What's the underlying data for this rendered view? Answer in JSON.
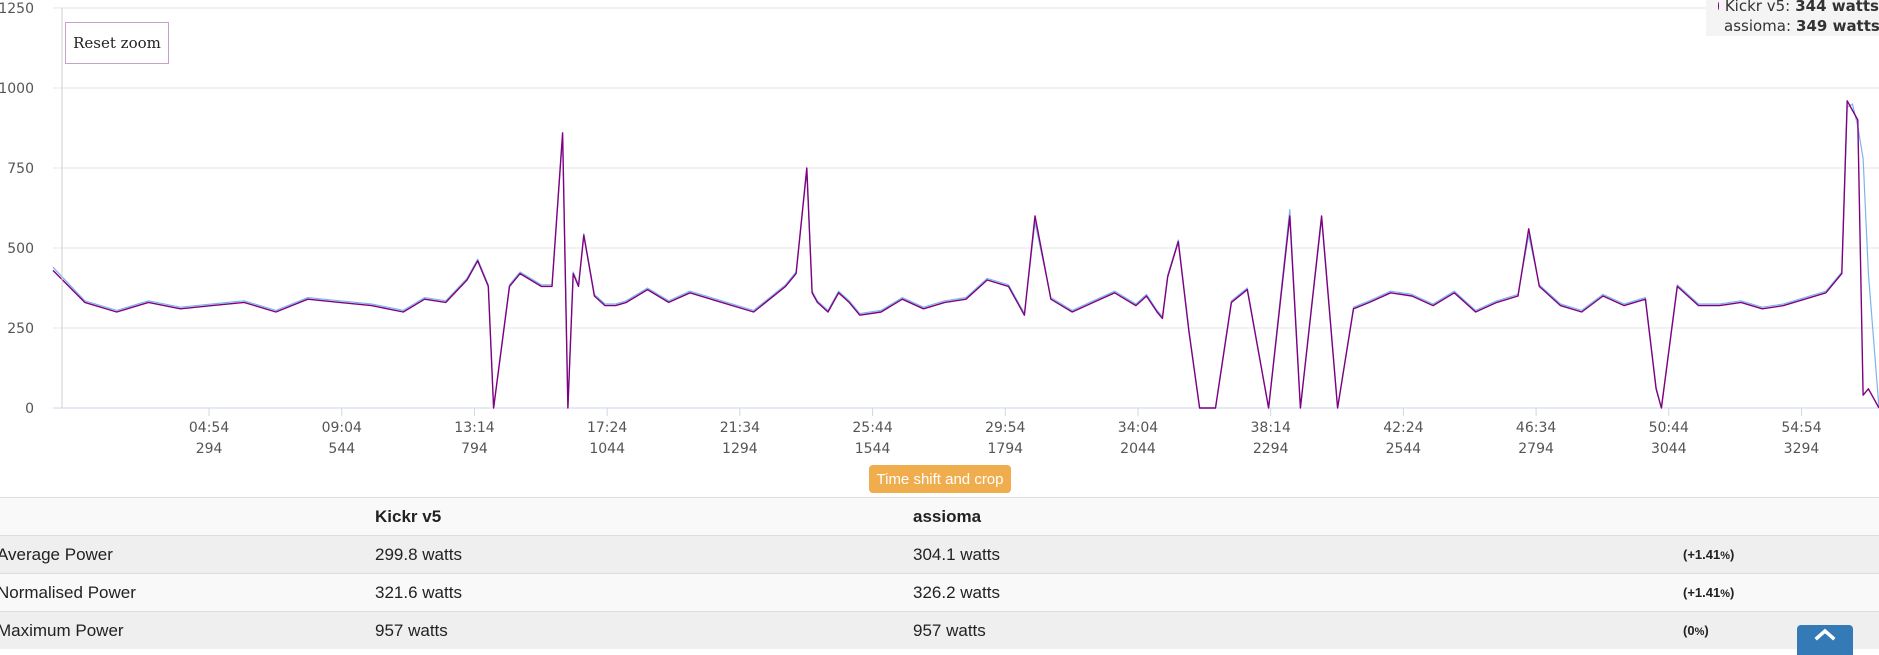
{
  "chart_data": {
    "type": "line",
    "title": "",
    "xlabel": "",
    "ylabel": "",
    "ylim": [
      0,
      1250
    ],
    "yticks": [
      0,
      250,
      500,
      750,
      1000,
      1250
    ],
    "grid": true,
    "x_tick_times": [
      "04:54",
      "09:04",
      "13:14",
      "17:24",
      "21:34",
      "25:44",
      "29:54",
      "34:04",
      "38:14",
      "42:24",
      "46:34",
      "50:44",
      "54:54"
    ],
    "x_tick_samples": [
      "294",
      "544",
      "794",
      "1044",
      "1294",
      "1544",
      "1794",
      "2044",
      "2294",
      "2544",
      "2794",
      "3044",
      "3294"
    ],
    "x_range_samples": [
      0,
      3440
    ],
    "series": [
      {
        "name": "Kickr v5",
        "color": "#800080",
        "x": [
          0,
          60,
          120,
          180,
          240,
          300,
          360,
          420,
          480,
          540,
          600,
          660,
          700,
          740,
          780,
          800,
          820,
          830,
          860,
          880,
          920,
          940,
          960,
          970,
          980,
          990,
          1000,
          1020,
          1040,
          1060,
          1080,
          1120,
          1160,
          1200,
          1260,
          1320,
          1380,
          1400,
          1420,
          1430,
          1440,
          1460,
          1480,
          1500,
          1520,
          1560,
          1600,
          1640,
          1680,
          1720,
          1760,
          1800,
          1830,
          1850,
          1880,
          1920,
          1960,
          2000,
          2040,
          2060,
          2080,
          2090,
          2100,
          2120,
          2140,
          2160,
          2190,
          2220,
          2250,
          2290,
          2330,
          2350,
          2390,
          2420,
          2450,
          2480,
          2520,
          2560,
          2600,
          2640,
          2680,
          2720,
          2760,
          2780,
          2800,
          2840,
          2880,
          2920,
          2960,
          3000,
          3020,
          3030,
          3060,
          3100,
          3140,
          3180,
          3220,
          3260,
          3300,
          3340,
          3370,
          3380,
          3390,
          3400,
          3410,
          3420,
          3440
        ],
        "values": [
          430,
          330,
          300,
          330,
          310,
          320,
          330,
          300,
          340,
          330,
          320,
          300,
          340,
          330,
          400,
          460,
          380,
          0,
          380,
          420,
          380,
          380,
          860,
          0,
          420,
          380,
          540,
          350,
          320,
          320,
          330,
          370,
          330,
          360,
          330,
          300,
          380,
          420,
          750,
          360,
          330,
          300,
          360,
          330,
          290,
          300,
          340,
          310,
          330,
          340,
          400,
          380,
          290,
          600,
          340,
          300,
          330,
          360,
          320,
          350,
          300,
          280,
          410,
          520,
          240,
          0,
          0,
          330,
          370,
          0,
          600,
          0,
          600,
          0,
          310,
          330,
          360,
          350,
          320,
          360,
          300,
          330,
          350,
          560,
          380,
          320,
          300,
          350,
          320,
          340,
          60,
          0,
          380,
          320,
          320,
          330,
          310,
          320,
          340,
          360,
          420,
          960,
          930,
          900,
          40,
          60,
          0
        ]
      },
      {
        "name": "assioma",
        "color": "#7cb5ec",
        "x": [
          0,
          60,
          120,
          180,
          240,
          300,
          360,
          420,
          480,
          540,
          600,
          660,
          700,
          740,
          780,
          800,
          820,
          830,
          860,
          880,
          920,
          940,
          960,
          970,
          980,
          990,
          1000,
          1020,
          1040,
          1060,
          1080,
          1120,
          1160,
          1200,
          1260,
          1320,
          1380,
          1400,
          1420,
          1430,
          1440,
          1460,
          1480,
          1500,
          1520,
          1560,
          1600,
          1640,
          1680,
          1720,
          1760,
          1800,
          1830,
          1850,
          1880,
          1920,
          1960,
          2000,
          2040,
          2060,
          2080,
          2090,
          2100,
          2120,
          2140,
          2160,
          2190,
          2220,
          2250,
          2290,
          2330,
          2350,
          2390,
          2420,
          2450,
          2480,
          2520,
          2560,
          2600,
          2640,
          2680,
          2720,
          2760,
          2780,
          2800,
          2840,
          2880,
          2920,
          2960,
          3000,
          3020,
          3030,
          3060,
          3100,
          3140,
          3180,
          3220,
          3260,
          3300,
          3340,
          3370,
          3380,
          3390,
          3400,
          3410,
          3420,
          3440
        ],
        "values": [
          440,
          335,
          305,
          335,
          315,
          325,
          335,
          305,
          345,
          335,
          325,
          305,
          345,
          335,
          405,
          465,
          385,
          0,
          385,
          425,
          385,
          385,
          850,
          0,
          425,
          385,
          545,
          355,
          325,
          325,
          335,
          375,
          335,
          365,
          335,
          305,
          385,
          425,
          740,
          365,
          335,
          305,
          365,
          335,
          295,
          305,
          345,
          315,
          335,
          345,
          405,
          385,
          295,
          580,
          345,
          305,
          335,
          365,
          325,
          355,
          305,
          285,
          415,
          525,
          245,
          0,
          0,
          335,
          375,
          0,
          620,
          0,
          590,
          0,
          315,
          335,
          365,
          355,
          325,
          365,
          305,
          335,
          355,
          540,
          385,
          325,
          305,
          355,
          325,
          345,
          65,
          0,
          385,
          325,
          325,
          335,
          315,
          325,
          345,
          365,
          425,
          940,
          950,
          880,
          780,
          420,
          0
        ]
      }
    ]
  },
  "reset_zoom_label": "Reset zoom",
  "legend": {
    "items": [
      {
        "name": "Kickr v5",
        "value": "344 watts",
        "color": "#800080"
      },
      {
        "name": "assioma",
        "value": "349 watts",
        "color": "#7cb5ec"
      }
    ]
  },
  "crop_button_label": "Time shift and crop",
  "table": {
    "headers": [
      "",
      "Kickr v5",
      "assioma",
      ""
    ],
    "rows": [
      {
        "metric": "Average Power",
        "a": "299.8 watts",
        "b": "304.1 watts",
        "diff": "(+1.41",
        "pct": "%",
        "close": ")"
      },
      {
        "metric": "Normalised Power",
        "a": "321.6 watts",
        "b": "326.2 watts",
        "diff": "(+1.41",
        "pct": "%",
        "close": ")"
      },
      {
        "metric": "Maximum Power",
        "a": "957 watts",
        "b": "957 watts",
        "diff": "(0",
        "pct": "%",
        "close": ")"
      }
    ]
  },
  "scroll_top_icon": "chevron-up-icon"
}
